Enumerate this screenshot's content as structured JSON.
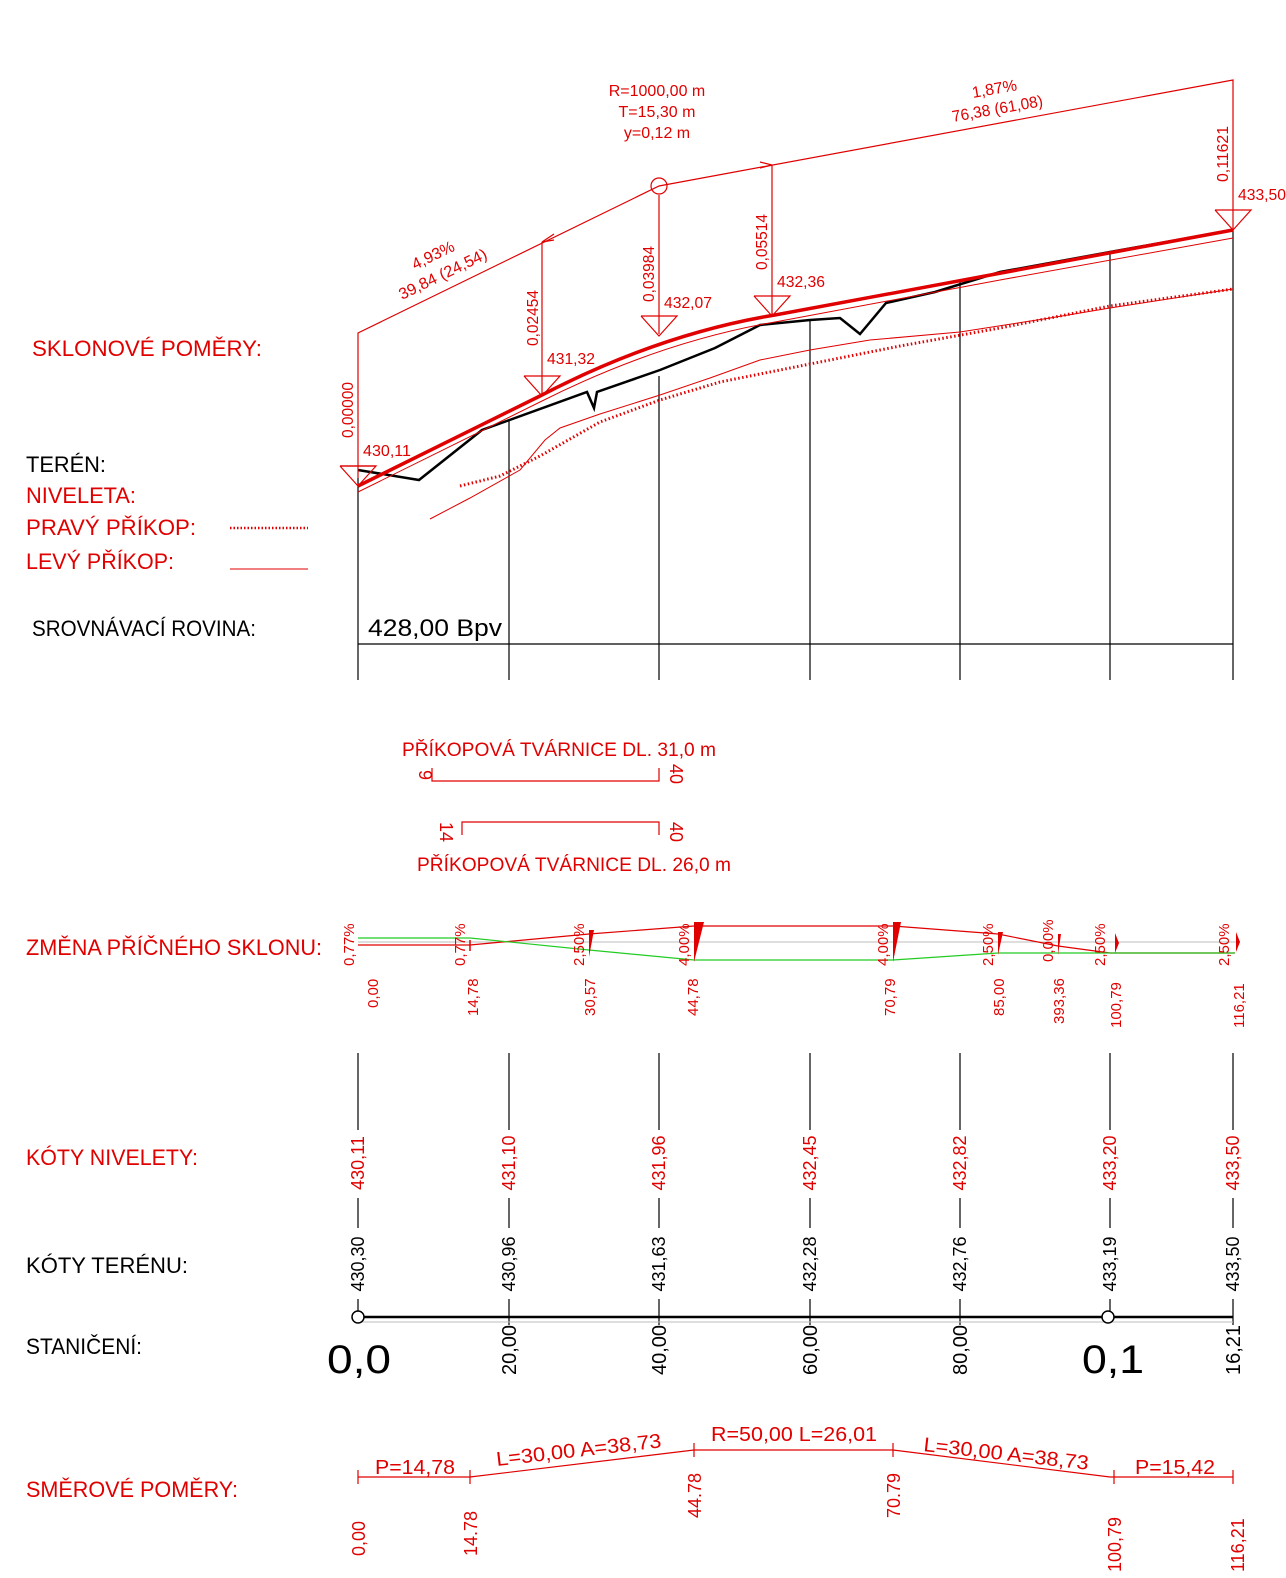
{
  "colors": {
    "red": "#e00000",
    "black": "#000000",
    "green": "#22cc22",
    "grey": "#bdbdbd"
  },
  "labels": {
    "sklonove": "SKLONOVÉ POMĚRY:",
    "teren": "TERÉN:",
    "niveleta": "NIVELETA:",
    "pravy": "PRAVÝ PŘÍKOP:",
    "levy": "LEVÝ PŘÍKOP:",
    "srovnavaci": "SROVNÁVACÍ ROVINA:",
    "zmena": "ZMĚNA PŘÍČNÉHO SKLONU:",
    "koty_nivelety": "KÓTY NIVELETY:",
    "koty_terenu": "KÓTY TERÉNU:",
    "staniceni": "STANIČENÍ:",
    "smerove": "SMĚROVÉ POMĚRY:"
  },
  "datum": "428,00 Bpv",
  "slopes": {
    "seg1_pct": "4,93%",
    "seg1_len": "39,84 (24,54)",
    "seg2_pct": "1,87%",
    "seg2_len": "76,38 (61,08)",
    "curve_r": "R=1000,00 m",
    "curve_t": "T=15,30 m",
    "curve_y": "y=0,12 m"
  },
  "profile_points": [
    {
      "km": "0,00000",
      "elev": "430,11"
    },
    {
      "km": "0,02454",
      "elev": "431,32"
    },
    {
      "km": "0,03984",
      "elev": "432,07"
    },
    {
      "km": "0,05514",
      "elev": "432,36"
    },
    {
      "km": "0,11621",
      "elev": "433,50"
    }
  ],
  "tvarnice": [
    {
      "text": "PŘÍKOPOVÁ  TVÁRNICE  DL.  31,0  m",
      "start": "9",
      "end": "40"
    },
    {
      "text": "PŘÍKOPOVÁ  TVÁRNICE  DL.  26,0  m",
      "start": "14",
      "end": "40"
    }
  ],
  "cross_slope": {
    "percents": [
      "0,77%",
      "0,77%",
      "2,50%",
      "4,00%",
      "4,00%",
      "2,50%",
      "0,00%",
      "2,50%",
      "2,50%"
    ],
    "stations": [
      "0,00",
      "14,78",
      "30,57",
      "44,78",
      "70,79",
      "85,00",
      "393,36",
      "100,79",
      "116,21"
    ]
  },
  "koty_nivelety": [
    "430,11",
    "431,10",
    "431,96",
    "432,45",
    "432,82",
    "433,20",
    "433,50"
  ],
  "koty_terenu": [
    "430,30",
    "430,96",
    "431,63",
    "432,28",
    "432,76",
    "433,19",
    "433,50"
  ],
  "staniceni": [
    "0,0",
    "20,00",
    "40,00",
    "60,00",
    "80,00",
    "0,1",
    "16,21"
  ],
  "smerove": {
    "p1": "P=14,78",
    "l1": "L=30,00  A=38,73",
    "r": "R=50,00  L=26,01",
    "l2": "L=30,00  A=38,73",
    "p2": "P=15,42",
    "stations": [
      "0,00",
      "14.78",
      "44.78",
      "70.79",
      "100,79",
      "116,21"
    ]
  }
}
